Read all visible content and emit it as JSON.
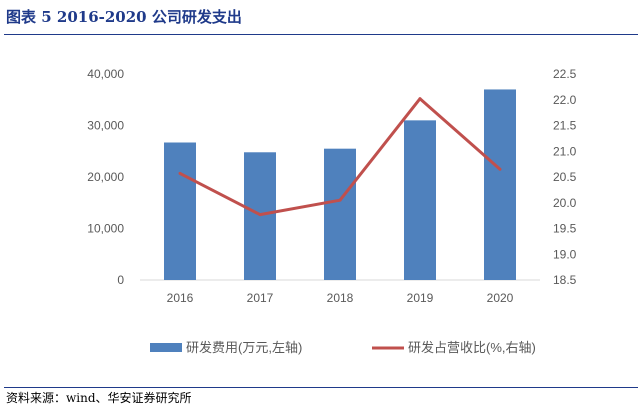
{
  "figure": {
    "title": "图表 5 2016-2020 公司研发支出",
    "source": "资料来源：wind、华安证券研究所"
  },
  "chart_data": {
    "type": "bar",
    "categories": [
      "2016",
      "2017",
      "2018",
      "2019",
      "2020"
    ],
    "series": [
      {
        "name": "研发费用(万元,左轴)",
        "kind": "bar",
        "axis": "left",
        "color": "#4f81bd",
        "values": [
          26700,
          24800,
          25500,
          31000,
          37000
        ]
      },
      {
        "name": "研发占营收比(%,右轴)",
        "kind": "line",
        "axis": "right",
        "color": "#c0504d",
        "values": [
          20.57,
          19.77,
          20.05,
          22.02,
          20.65
        ]
      }
    ],
    "left_axis": {
      "ylim": [
        0,
        40000
      ],
      "ticks": [
        "0",
        "10,000",
        "20,000",
        "30,000",
        "40,000"
      ]
    },
    "right_axis": {
      "ylim": [
        18.5,
        22.5
      ],
      "ticks": [
        "18.5",
        "19.0",
        "19.5",
        "20.0",
        "20.5",
        "21.0",
        "21.5",
        "22.0",
        "22.5"
      ]
    },
    "grid": false,
    "legend": "bottom"
  }
}
